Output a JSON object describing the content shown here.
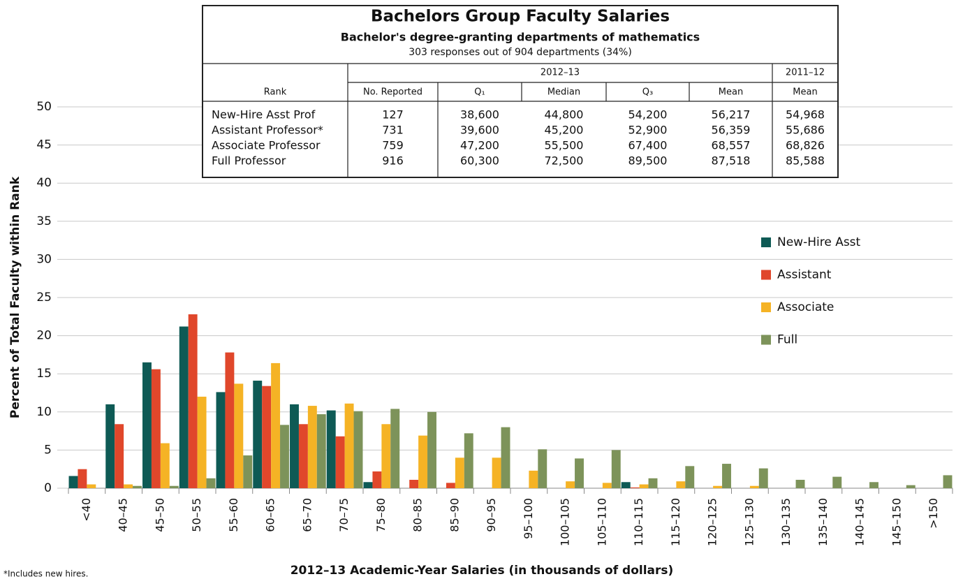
{
  "chart_data": {
    "type": "bar",
    "title": "Bachelors Group Faculty Salaries",
    "subtitle": "Bachelor's degree-granting departments of mathematics",
    "caption": "303 responses out of 904 departments (34%)",
    "x_label": "2012–13 Academic-Year Salaries (in thousands of dollars)",
    "y_label": "Percent of Total Faculty within Rank",
    "footnote": "*Includes new hires.",
    "categories": [
      "<40",
      "40–45",
      "45–50",
      "50–55",
      "55–60",
      "60–65",
      "65–70",
      "70–75",
      "75–80",
      "80–85",
      "85–90",
      "90–95",
      "95–100",
      "100–105",
      "105–110",
      "110–115",
      "115–120",
      "120–125",
      "125–130",
      "130–135",
      "135–140",
      "140–145",
      "145–150",
      ">150"
    ],
    "series": [
      {
        "name": "New-Hire Asst",
        "color": "#0e5a55",
        "values": [
          1.6,
          11,
          16.5,
          21.2,
          12.6,
          14.1,
          11,
          10.2,
          0.8,
          0,
          0,
          0,
          0,
          0,
          0,
          0.8,
          0,
          0,
          0,
          0,
          0,
          0,
          0,
          0
        ]
      },
      {
        "name": "Assistant",
        "color": "#e0472b",
        "values": [
          2.5,
          8.4,
          15.6,
          22.8,
          17.8,
          13.4,
          8.4,
          6.8,
          2.2,
          1.1,
          0.7,
          0,
          0,
          0,
          0,
          0.1,
          0,
          0,
          0,
          0,
          0,
          0,
          0,
          0
        ]
      },
      {
        "name": "Associate",
        "color": "#f5b325",
        "values": [
          0.5,
          0.5,
          5.9,
          12,
          13.7,
          16.4,
          10.8,
          11.1,
          8.4,
          6.9,
          4,
          4,
          2.3,
          0.9,
          0.7,
          0.5,
          0.9,
          0.3,
          0.3,
          0,
          0,
          0,
          0,
          0
        ]
      },
      {
        "name": "Full",
        "color": "#7d935a",
        "values": [
          0,
          0.3,
          0.3,
          1.3,
          4.3,
          8.3,
          9.7,
          10.1,
          10.4,
          10,
          7.2,
          8,
          5.1,
          3.9,
          5,
          1.3,
          2.9,
          3.2,
          2.6,
          1.1,
          1.5,
          0.8,
          0.4,
          1.7
        ]
      }
    ],
    "ylim": [
      0,
      50
    ],
    "yticks": [
      0,
      5,
      10,
      15,
      20,
      25,
      30,
      35,
      40,
      45,
      50
    ],
    "grid": true,
    "legend": "right"
  },
  "table": {
    "group_headers": [
      "2012–13",
      "2011–12"
    ],
    "columns": [
      "Rank",
      "No. Reported",
      "Q₁",
      "Median",
      "Q₃",
      "Mean",
      "Mean"
    ],
    "rows": [
      [
        "New-Hire Asst Prof",
        "127",
        "38,600",
        "44,800",
        "54,200",
        "56,217",
        "54,968"
      ],
      [
        "Assistant Professor*",
        "731",
        "39,600",
        "45,200",
        "52,900",
        "56,359",
        "55,686"
      ],
      [
        "Associate Professor",
        "759",
        "47,200",
        "55,500",
        "67,400",
        "68,557",
        "68,826"
      ],
      [
        "Full Professor",
        "916",
        "60,300",
        "72,500",
        "89,500",
        "87,518",
        "85,588"
      ]
    ]
  }
}
